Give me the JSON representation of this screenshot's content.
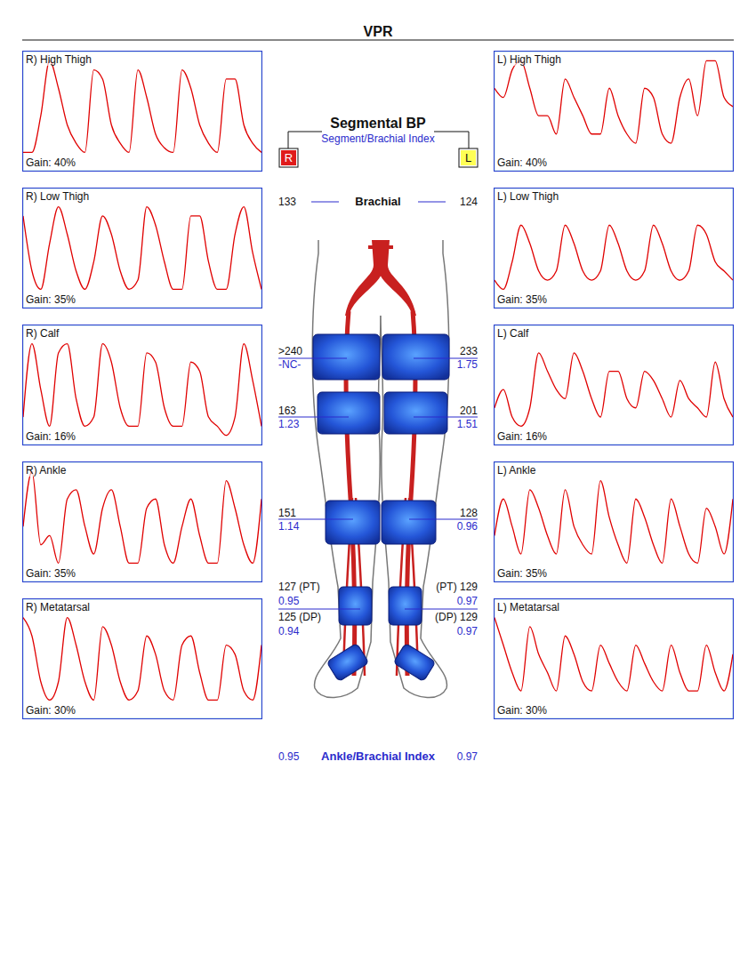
{
  "header": {
    "title": "VPR"
  },
  "chart_data": [
    {
      "type": "line",
      "title": "R) High Thigh",
      "annotation": "Gain: 40%",
      "color": "#e00000",
      "grid": true,
      "tick_labels": false,
      "xlim": [
        0,
        27
      ],
      "ylim": [
        0,
        13
      ],
      "xticks": [
        0,
        1,
        2,
        3,
        4,
        5,
        6,
        7,
        8,
        9,
        10,
        11,
        12,
        13,
        14,
        15,
        16,
        17,
        18,
        19,
        20,
        21,
        22,
        23,
        24,
        25,
        26,
        27
      ],
      "yticks": [
        0,
        1,
        2,
        3,
        4,
        5,
        6,
        7,
        8,
        9,
        10,
        11,
        12,
        13
      ],
      "x": [
        0,
        1,
        2,
        3,
        4,
        5,
        6,
        7,
        8,
        9,
        10,
        11,
        12,
        13,
        14,
        15,
        16,
        17,
        18,
        19,
        20,
        21,
        22,
        23,
        24,
        25,
        26,
        27
      ],
      "values": [
        2,
        2,
        6,
        12,
        9,
        5,
        3,
        2,
        11,
        10,
        5,
        3,
        2,
        11,
        8,
        4,
        2.5,
        2,
        11,
        9,
        5,
        3,
        2,
        10,
        10,
        5,
        3,
        2
      ]
    },
    {
      "type": "line",
      "title": "R) Low Thigh",
      "annotation": "Gain: 35%",
      "color": "#e00000",
      "grid": true,
      "tick_labels": false,
      "xlim": [
        0,
        27
      ],
      "ylim": [
        0,
        13
      ],
      "xticks": [
        0,
        1,
        2,
        3,
        4,
        5,
        6,
        7,
        8,
        9,
        10,
        11,
        12,
        13,
        14,
        15,
        16,
        17,
        18,
        19,
        20,
        21,
        22,
        23,
        24,
        25,
        26,
        27
      ],
      "yticks": [
        0,
        1,
        2,
        3,
        4,
        5,
        6,
        7,
        8,
        9,
        10,
        11,
        12,
        13
      ],
      "x": [
        0,
        1,
        2,
        3,
        4,
        5,
        6,
        7,
        8,
        9,
        10,
        11,
        12,
        13,
        14,
        15,
        16,
        17,
        18,
        19,
        20,
        21,
        22,
        23,
        24,
        25,
        26,
        27
      ],
      "values": [
        10,
        4,
        2,
        7,
        11,
        8,
        4,
        2,
        5,
        10,
        8,
        4,
        2,
        3,
        11,
        9,
        5,
        2,
        2,
        10,
        10,
        5,
        2,
        2,
        8,
        11,
        6,
        2
      ]
    },
    {
      "type": "line",
      "title": "R) Calf",
      "annotation": "Gain: 16%",
      "color": "#e00000",
      "grid": true,
      "tick_labels": false,
      "xlim": [
        0,
        27
      ],
      "ylim": [
        0,
        13
      ],
      "xticks": [
        0,
        1,
        2,
        3,
        4,
        5,
        6,
        7,
        8,
        9,
        10,
        11,
        12,
        13,
        14,
        15,
        16,
        17,
        18,
        19,
        20,
        21,
        22,
        23,
        24,
        25,
        26,
        27
      ],
      "yticks": [
        0,
        1,
        2,
        3,
        4,
        5,
        6,
        7,
        8,
        9,
        10,
        11,
        12,
        13
      ],
      "x": [
        0,
        1,
        2,
        3,
        4,
        5,
        6,
        7,
        8,
        9,
        10,
        11,
        12,
        13,
        14,
        15,
        16,
        17,
        18,
        19,
        20,
        21,
        22,
        23,
        24,
        25,
        26,
        27
      ],
      "values": [
        3,
        11,
        6,
        2,
        10,
        11,
        5,
        2,
        3,
        11,
        9,
        4,
        2,
        2,
        10,
        9,
        4,
        2,
        2,
        9,
        8,
        3,
        2,
        1,
        3,
        11,
        7,
        2
      ]
    },
    {
      "type": "line",
      "title": "R) Ankle",
      "annotation": "Gain: 35%",
      "color": "#e00000",
      "grid": true,
      "tick_labels": false,
      "xlim": [
        0,
        27
      ],
      "ylim": [
        0,
        13
      ],
      "xticks": [
        0,
        1,
        2,
        3,
        4,
        5,
        6,
        7,
        8,
        9,
        10,
        11,
        12,
        13,
        14,
        15,
        16,
        17,
        18,
        19,
        20,
        21,
        22,
        23,
        24,
        25,
        26,
        27
      ],
      "yticks": [
        0,
        1,
        2,
        3,
        4,
        5,
        6,
        7,
        8,
        9,
        10,
        11,
        12,
        13
      ],
      "x": [
        0,
        1,
        2,
        3,
        4,
        5,
        6,
        7,
        8,
        9,
        10,
        11,
        12,
        13,
        14,
        15,
        16,
        17,
        18,
        19,
        20,
        21,
        22,
        23,
        24,
        25,
        26,
        27
      ],
      "values": [
        6,
        12,
        4,
        5,
        2,
        9,
        10,
        6,
        3,
        8,
        10,
        6,
        2,
        2,
        8,
        9,
        4,
        2,
        6,
        9,
        5,
        2,
        2,
        11,
        8,
        4,
        2,
        9
      ]
    },
    {
      "type": "line",
      "title": "R) Metatarsal",
      "annotation": "Gain: 30%",
      "color": "#e00000",
      "grid": true,
      "tick_labels": false,
      "xlim": [
        0,
        27
      ],
      "ylim": [
        0,
        13
      ],
      "xticks": [
        0,
        1,
        2,
        3,
        4,
        5,
        6,
        7,
        8,
        9,
        10,
        11,
        12,
        13,
        14,
        15,
        16,
        17,
        18,
        19,
        20,
        21,
        22,
        23,
        24,
        25,
        26,
        27
      ],
      "yticks": [
        0,
        1,
        2,
        3,
        4,
        5,
        6,
        7,
        8,
        9,
        10,
        11,
        12,
        13
      ],
      "x": [
        0,
        1,
        2,
        3,
        4,
        5,
        6,
        7,
        8,
        9,
        10,
        11,
        12,
        13,
        14,
        15,
        16,
        17,
        18,
        19,
        20,
        21,
        22,
        23,
        24,
        25,
        26,
        27
      ],
      "values": [
        11,
        9,
        4,
        2,
        4,
        11,
        8,
        4,
        2,
        10,
        8,
        4,
        2,
        3,
        9,
        7,
        3,
        2,
        8,
        9,
        5,
        2,
        2,
        8,
        7,
        3,
        2,
        8
      ]
    },
    {
      "type": "line",
      "title": "L) High Thigh",
      "annotation": "Gain: 40%",
      "color": "#e00000",
      "grid": true,
      "tick_labels": false,
      "xlim": [
        0,
        27
      ],
      "ylim": [
        0,
        13
      ],
      "xticks": [
        0,
        1,
        2,
        3,
        4,
        5,
        6,
        7,
        8,
        9,
        10,
        11,
        12,
        13,
        14,
        15,
        16,
        17,
        18,
        19,
        20,
        21,
        22,
        23,
        24,
        25,
        26,
        27
      ],
      "yticks": [
        0,
        1,
        2,
        3,
        4,
        5,
        6,
        7,
        8,
        9,
        10,
        11,
        12,
        13
      ],
      "x": [
        0,
        1,
        2,
        3,
        4,
        5,
        6,
        7,
        8,
        9,
        10,
        11,
        12,
        13,
        14,
        15,
        16,
        17,
        18,
        19,
        20,
        21,
        22,
        23,
        24,
        25,
        26,
        27
      ],
      "values": [
        9,
        8,
        11,
        12,
        9,
        6,
        6,
        4,
        10,
        8,
        6,
        4,
        4,
        9,
        6,
        4,
        3,
        9,
        8,
        4,
        3,
        8,
        10,
        6,
        12,
        12,
        8,
        7
      ]
    },
    {
      "type": "line",
      "title": "L) Low Thigh",
      "annotation": "Gain: 35%",
      "color": "#e00000",
      "grid": true,
      "tick_labels": false,
      "xlim": [
        0,
        27
      ],
      "ylim": [
        0,
        13
      ],
      "xticks": [
        0,
        1,
        2,
        3,
        4,
        5,
        6,
        7,
        8,
        9,
        10,
        11,
        12,
        13,
        14,
        15,
        16,
        17,
        18,
        19,
        20,
        21,
        22,
        23,
        24,
        25,
        26,
        27
      ],
      "yticks": [
        0,
        1,
        2,
        3,
        4,
        5,
        6,
        7,
        8,
        9,
        10,
        11,
        12,
        13
      ],
      "x": [
        0,
        1,
        2,
        3,
        4,
        5,
        6,
        7,
        8,
        9,
        10,
        11,
        12,
        13,
        14,
        15,
        16,
        17,
        18,
        19,
        20,
        21,
        22,
        23,
        24,
        25,
        26,
        27
      ],
      "values": [
        3,
        2,
        5,
        9,
        7,
        4,
        3,
        4,
        9,
        7,
        4,
        3,
        4,
        9,
        7,
        4,
        3,
        4,
        9,
        7,
        4,
        3,
        4,
        9,
        8,
        5,
        4,
        3
      ]
    },
    {
      "type": "line",
      "title": "L) Calf",
      "annotation": "Gain: 16%",
      "color": "#e00000",
      "grid": true,
      "tick_labels": false,
      "xlim": [
        0,
        27
      ],
      "ylim": [
        0,
        13
      ],
      "xticks": [
        0,
        1,
        2,
        3,
        4,
        5,
        6,
        7,
        8,
        9,
        10,
        11,
        12,
        13,
        14,
        15,
        16,
        17,
        18,
        19,
        20,
        21,
        22,
        23,
        24,
        25,
        26,
        27
      ],
      "yticks": [
        0,
        1,
        2,
        3,
        4,
        5,
        6,
        7,
        8,
        9,
        10,
        11,
        12,
        13
      ],
      "x": [
        0,
        1,
        2,
        3,
        4,
        5,
        6,
        7,
        8,
        9,
        10,
        11,
        12,
        13,
        14,
        15,
        16,
        17,
        18,
        19,
        20,
        21,
        22,
        23,
        24,
        25,
        26,
        27
      ],
      "values": [
        4,
        6,
        3,
        2,
        4,
        10,
        8,
        6,
        5,
        10,
        8,
        5,
        3,
        8,
        8,
        5,
        4,
        8,
        7,
        5,
        3,
        7,
        5,
        4,
        3,
        9,
        5,
        3
      ]
    },
    {
      "type": "line",
      "title": "L) Ankle",
      "annotation": "Gain: 35%",
      "color": "#e00000",
      "grid": true,
      "tick_labels": false,
      "xlim": [
        0,
        27
      ],
      "ylim": [
        0,
        13
      ],
      "xticks": [
        0,
        1,
        2,
        3,
        4,
        5,
        6,
        7,
        8,
        9,
        10,
        11,
        12,
        13,
        14,
        15,
        16,
        17,
        18,
        19,
        20,
        21,
        22,
        23,
        24,
        25,
        26,
        27
      ],
      "yticks": [
        0,
        1,
        2,
        3,
        4,
        5,
        6,
        7,
        8,
        9,
        10,
        11,
        12,
        13
      ],
      "x": [
        0,
        1,
        2,
        3,
        4,
        5,
        6,
        7,
        8,
        9,
        10,
        11,
        12,
        13,
        14,
        15,
        16,
        17,
        18,
        19,
        20,
        21,
        22,
        23,
        24,
        25,
        26,
        27
      ],
      "values": [
        5,
        9,
        6,
        3,
        10,
        8,
        5,
        3,
        10,
        6,
        4,
        3,
        11,
        7,
        4,
        2,
        9,
        7,
        4,
        2,
        9,
        6,
        3,
        2,
        8,
        6,
        3,
        9
      ]
    },
    {
      "type": "line",
      "title": "L) Metatarsal",
      "annotation": "Gain: 30%",
      "color": "#e00000",
      "grid": true,
      "tick_labels": false,
      "xlim": [
        0,
        27
      ],
      "ylim": [
        0,
        13
      ],
      "xticks": [
        0,
        1,
        2,
        3,
        4,
        5,
        6,
        7,
        8,
        9,
        10,
        11,
        12,
        13,
        14,
        15,
        16,
        17,
        18,
        19,
        20,
        21,
        22,
        23,
        24,
        25,
        26,
        27
      ],
      "yticks": [
        0,
        1,
        2,
        3,
        4,
        5,
        6,
        7,
        8,
        9,
        10,
        11,
        12,
        13
      ],
      "x": [
        0,
        1,
        2,
        3,
        4,
        5,
        6,
        7,
        8,
        9,
        10,
        11,
        12,
        13,
        14,
        15,
        16,
        17,
        18,
        19,
        20,
        21,
        22,
        23,
        24,
        25,
        26,
        27
      ],
      "values": [
        11,
        8,
        5,
        3,
        10,
        7,
        5,
        3,
        9,
        7,
        4,
        3,
        8,
        6,
        4,
        3,
        8,
        6,
        4,
        3,
        8,
        5,
        3,
        3,
        8,
        5,
        3,
        7
      ]
    }
  ],
  "segmental_bp": {
    "title": "Segmental BP",
    "subtitle": "Segment/Brachial Index",
    "right_label": "R",
    "left_label": "L",
    "brachial": {
      "label": "Brachial",
      "right": 133,
      "left": 124
    },
    "segments": [
      {
        "right_pressure": ">240",
        "right_index": "-NC-",
        "left_pressure": 233,
        "left_index": 1.75
      },
      {
        "right_pressure": 163,
        "right_index": 1.23,
        "left_pressure": 201,
        "left_index": 1.51
      },
      {
        "right_pressure": 151,
        "right_index": 1.14,
        "left_pressure": 128,
        "left_index": 0.96
      }
    ],
    "ankle": {
      "right": [
        {
          "pressure": "127 (PT)",
          "index": 0.95
        },
        {
          "pressure": "125 (DP)",
          "index": 0.94
        }
      ],
      "left": [
        {
          "pressure": "(PT) 129",
          "index": 0.97
        },
        {
          "pressure": "(DP) 129",
          "index": 0.97
        }
      ]
    },
    "abi": {
      "label": "Ankle/Brachial Index",
      "right": 0.95,
      "left": 0.97
    }
  }
}
